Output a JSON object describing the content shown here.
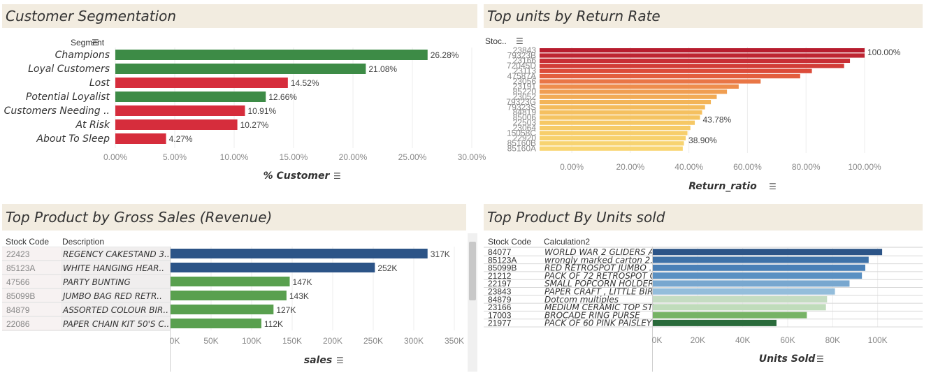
{
  "panels": {
    "seg": {
      "title": "Customer Segmentation"
    },
    "ret": {
      "title": "Top units by Return Rate"
    },
    "gross": {
      "title": "Top  Product by Gross Sales (Revenue)"
    },
    "units": {
      "title": "Top Product By Units sold"
    }
  },
  "chart_data": [
    {
      "id": "seg",
      "type": "bar",
      "orientation": "horizontal",
      "row_header": "Segment",
      "categories": [
        "Champions",
        "Loyal Customers",
        "Lost",
        "Potential Loyalist",
        "Customers Needing ..",
        "At Risk",
        "About To Sleep"
      ],
      "values": [
        26.28,
        21.08,
        14.52,
        12.66,
        10.91,
        10.27,
        4.27
      ],
      "data_labels": [
        "26.28%",
        "21.08%",
        "14.52%",
        "12.66%",
        "10.91%",
        "10.27%",
        "4.27%"
      ],
      "colors": [
        "#3d8b46",
        "#3d8b46",
        "#d62d3c",
        "#3d8b46",
        "#d62d3c",
        "#d62d3c",
        "#d62d3c"
      ],
      "xlabel": "% Customer",
      "xlim": [
        0,
        30
      ],
      "xticks": [
        0,
        5,
        10,
        15,
        20,
        25,
        30
      ],
      "xtick_labels": [
        "0.00%",
        "5.00%",
        "10.00%",
        "15.00%",
        "20.00%",
        "25.00%",
        "30.00%"
      ]
    },
    {
      "id": "ret",
      "type": "bar",
      "orientation": "horizontal",
      "row_header": "Stoc..",
      "categories": [
        "23843",
        "79323B",
        "23166",
        "72045D",
        "23113",
        "47587A",
        "23056",
        "23191",
        "85220",
        "23052",
        "79323G",
        "79323S",
        "84819",
        "85006",
        "22503",
        "23064",
        "15058C",
        "22920",
        "85160B",
        "85160A"
      ],
      "values": [
        100,
        100,
        95,
        93,
        82,
        78,
        64.5,
        57,
        53,
        49.5,
        47.5,
        45.5,
        44.5,
        43.78,
        42,
        40.5,
        39.5,
        38.9,
        38.3,
        37.9
      ],
      "data_labels": {
        "0": "100.00%",
        "13": "43.78%",
        "17": "38.90%"
      },
      "colors": [
        "#b71c2e",
        "#be2532",
        "#c82e35",
        "#d23c37",
        "#dc4b3a",
        "#e35e3f",
        "#e97646",
        "#ee8d4c",
        "#f09e51",
        "#f2ab55",
        "#f3b458",
        "#f4bb5c",
        "#f5c060",
        "#f5c462",
        "#f6c865",
        "#f6cb68",
        "#f7ce6b",
        "#f7d16d",
        "#f7d370",
        "#f8d572"
      ],
      "xlabel": "Return_ratio",
      "xlim": [
        -11,
        100
      ],
      "xticks": [
        0,
        20,
        40,
        60,
        80,
        100
      ],
      "xtick_labels": [
        "0.00%",
        "20.00%",
        "40.00%",
        "60.00%",
        "80.00%",
        "100.00%"
      ]
    },
    {
      "id": "gross",
      "type": "bar",
      "orientation": "horizontal",
      "headers": [
        "Stock Code",
        "Description"
      ],
      "codes": [
        "22423",
        "85123A",
        "47566",
        "85099B",
        "84879",
        "22086"
      ],
      "categories": [
        "REGENCY CAKESTAND 3..",
        "WHITE HANGING HEAR..",
        "PARTY BUNTING",
        "JUMBO BAG RED RETR..",
        "ASSORTED COLOUR BIR..",
        "PAPER CHAIN KIT 50'S C.."
      ],
      "values": [
        317,
        252,
        147,
        143,
        127,
        112
      ],
      "data_labels": [
        "317K",
        "252K",
        "147K",
        "143K",
        "127K",
        "112K"
      ],
      "colors": [
        "#2c5487",
        "#2c5487",
        "#59a04f",
        "#59a04f",
        "#59a04f",
        "#59a04f"
      ],
      "xlabel": "sales",
      "xlim": [
        0,
        350
      ],
      "xticks": [
        0,
        50,
        100,
        150,
        200,
        250,
        300,
        350
      ],
      "xtick_labels": [
        "0K",
        "50K",
        "100K",
        "150K",
        "200K",
        "250K",
        "300K",
        "350K"
      ]
    },
    {
      "id": "units",
      "type": "bar",
      "orientation": "horizontal",
      "headers": [
        "Stock Code",
        "Calculation2"
      ],
      "codes": [
        "84077",
        "85123A",
        "85099B",
        "21212",
        "22197",
        "23843",
        "84879",
        "23166",
        "17003",
        "21977"
      ],
      "categories": [
        "WORLD WAR 2 GLIDERS A..",
        "wrongly marked carton 2..",
        "RED RETROSPOT JUMBO ..",
        "PACK OF 72 RETROSPOT C..",
        "SMALL POPCORN HOLDER",
        "PAPER CRAFT , LITTLE BIR..",
        "Dotcom multiples",
        "MEDIUM CERAMIC TOP ST..",
        "BROCADE RING PURSE",
        "PACK OF 60 PINK PAISLEY .."
      ],
      "values": [
        102,
        96,
        94.5,
        93,
        87.5,
        81,
        77.5,
        77,
        68.5,
        55
      ],
      "colors": [
        "#2c5487",
        "#3f72a8",
        "#4a80b7",
        "#5a90c2",
        "#78a7cf",
        "#94bddb",
        "#c5dcc2",
        "#c0dcbb",
        "#76b365",
        "#2a6b3b"
      ],
      "xlabel": "Units Sold",
      "xlim": [
        0,
        120
      ],
      "xticks": [
        0,
        20,
        40,
        60,
        80,
        100
      ],
      "xtick_labels": [
        "0K",
        "20K",
        "40K",
        "60K",
        "80K",
        "100K"
      ]
    }
  ]
}
